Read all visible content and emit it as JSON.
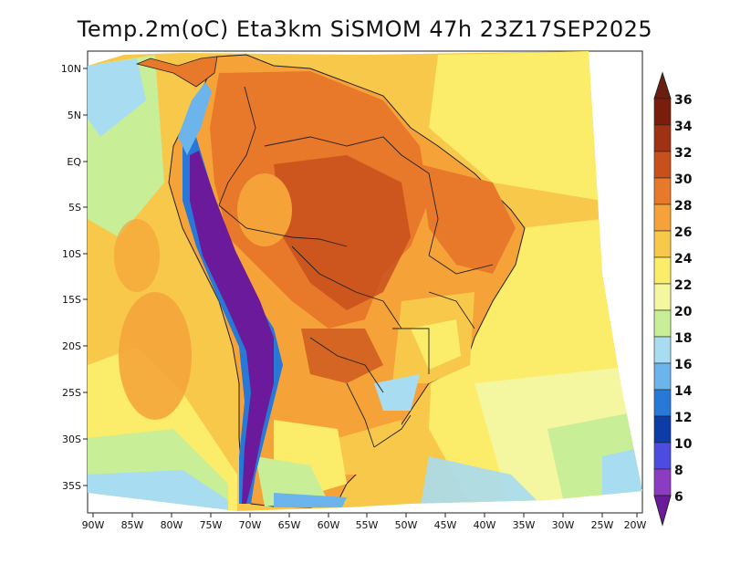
{
  "title": "Temp.2m(oC) Eta3km SiSMOM 47h 23Z17SEP2025",
  "latitude_labels": [
    "10N",
    "5N",
    "EQ",
    "5S",
    "10S",
    "15S",
    "20S",
    "25S",
    "30S",
    "35S"
  ],
  "longitude_labels": [
    "90W",
    "85W",
    "80W",
    "75W",
    "70W",
    "65W",
    "60W",
    "55W",
    "50W",
    "45W",
    "40W",
    "35W",
    "30W",
    "25W",
    "20W"
  ],
  "colorbar": {
    "labels": [
      "36",
      "34",
      "32",
      "30",
      "28",
      "26",
      "24",
      "22",
      "20",
      "18",
      "16",
      "14",
      "12",
      "10",
      "8",
      "6"
    ],
    "colors": [
      "#7a1e0c",
      "#a03214",
      "#c8501c",
      "#e8782a",
      "#f5a238",
      "#f8c84a",
      "#fbec6a",
      "#f4f6a0",
      "#c8ee98",
      "#a8dcf0",
      "#6cb4ec",
      "#2878d8",
      "#0c3ca8",
      "#4c4ce0",
      "#8c3cc0",
      "#6a1a9a"
    ]
  },
  "colors": {
    "ocean_warm": "#f8c84a",
    "ocean_mid": "#fbec6a",
    "ocean_cool": "#c8ee98",
    "ocean_cold": "#a8dcf0",
    "land_hot": "#e8782a",
    "land_hotter": "#c8501c",
    "andes": "#6a1a9a"
  }
}
